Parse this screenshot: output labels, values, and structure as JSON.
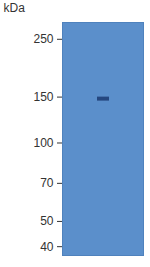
{
  "chart_data": {
    "type": "blot",
    "y_label": "kDa",
    "log": "y",
    "ylim": [
      37,
      290
    ],
    "yticks": [
      250,
      150,
      100,
      70,
      50,
      40
    ],
    "categories": [
      null
    ],
    "values": [
      148
    ],
    "color": "#1f3f77"
  }
}
